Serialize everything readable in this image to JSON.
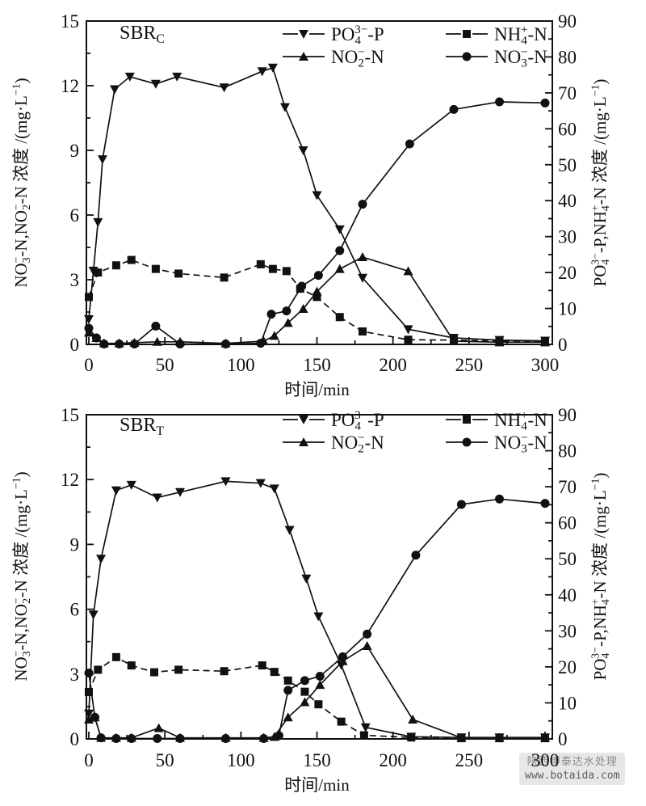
{
  "watermark": {
    "line1": "陕西博泰达水处理",
    "line2": "www.botaida.com"
  },
  "chart_data": [
    {
      "type": "line",
      "panel_label": {
        "text": "SBR",
        "sub": "C"
      },
      "xlabel": "时间/min",
      "xlim": [
        0,
        300
      ],
      "x_major_ticks": [
        0,
        50,
        100,
        150,
        200,
        250,
        300
      ],
      "x_minor_step": 25,
      "left_axis_label_segments": [
        [
          "NO",
          "n"
        ],
        [
          "3",
          "sb"
        ],
        [
          "−",
          "sp"
        ],
        [
          "-N,NO",
          "n"
        ],
        [
          "2",
          "sb"
        ],
        [
          "−",
          "sp"
        ],
        [
          "-N 浓度 /(mg·L",
          "n"
        ],
        [
          "−1",
          "sup"
        ],
        [
          ")",
          "n"
        ]
      ],
      "right_axis_label_segments": [
        [
          "PO",
          "n"
        ],
        [
          "4",
          "sb"
        ],
        [
          "3−",
          "sp"
        ],
        [
          "-P,NH",
          "n"
        ],
        [
          "4",
          "sb"
        ],
        [
          "+",
          "sp"
        ],
        [
          "-N 浓度 /(mg·L",
          "n"
        ],
        [
          "−1",
          "sup"
        ],
        [
          ")",
          "n"
        ]
      ],
      "ylim_left": [
        0,
        15
      ],
      "left_major_ticks": [
        0,
        3,
        6,
        9,
        12,
        15
      ],
      "left_minor_step": 1.5,
      "ylim_right": [
        0,
        90
      ],
      "right_major_ticks": [
        0,
        10,
        20,
        30,
        40,
        50,
        60,
        70,
        80,
        90
      ],
      "right_minor_step": 5,
      "grid": false,
      "legend_position": "top-inside-two-columns",
      "legend_columns": [
        [
          "po4",
          "no2"
        ],
        [
          "nh4",
          "no3"
        ]
      ],
      "series": [
        {
          "key": "po4",
          "name_plain": "PO4(3-)-P",
          "label_segments": [
            [
              "PO",
              "n"
            ],
            [
              "4",
              "sb"
            ],
            [
              "3−",
              "sp"
            ],
            [
              "-P",
              "n"
            ]
          ],
          "axis": "right",
          "marker": "tri-down",
          "dash": false,
          "legend_gap": true,
          "points": [
            [
              0,
              7
            ],
            [
              3,
              20.5
            ],
            [
              6,
              34
            ],
            [
              9,
              51.5
            ],
            [
              17,
              71
            ],
            [
              27,
              74.5
            ],
            [
              44,
              72.5
            ],
            [
              58,
              74.5
            ],
            [
              89,
              71.5
            ],
            [
              114,
              76
            ],
            [
              121,
              77
            ],
            [
              129,
              66
            ],
            [
              141,
              54
            ],
            [
              150,
              41.5
            ],
            [
              165,
              32
            ],
            [
              180,
              18.5
            ],
            [
              210,
              4.2
            ],
            [
              240,
              1.8
            ],
            [
              270,
              1.2
            ],
            [
              300,
              1.0
            ]
          ]
        },
        {
          "key": "nh4",
          "name_plain": "NH4(+)-N",
          "label_segments": [
            [
              "NH",
              "n"
            ],
            [
              "4",
              "sb"
            ],
            [
              "+",
              "sp"
            ],
            [
              "-N",
              "n"
            ]
          ],
          "axis": "right",
          "marker": "square",
          "dash": true,
          "legend_gap": true,
          "points": [
            [
              0,
              13.2
            ],
            [
              6,
              20
            ],
            [
              18,
              22
            ],
            [
              28,
              23.5
            ],
            [
              44,
              21
            ],
            [
              59,
              19.7
            ],
            [
              89,
              18.6
            ],
            [
              113,
              22.3
            ],
            [
              121,
              21
            ],
            [
              130,
              20.4
            ],
            [
              139,
              15.5
            ],
            [
              150,
              13.2
            ],
            [
              165,
              7.6
            ],
            [
              180,
              3.6
            ],
            [
              210,
              1.3
            ],
            [
              240,
              1.2
            ],
            [
              270,
              0.9
            ],
            [
              300,
              0.8
            ]
          ]
        },
        {
          "key": "no2",
          "name_plain": "NO2(-)-N",
          "label_segments": [
            [
              "NO",
              "n"
            ],
            [
              "2",
              "sb"
            ],
            [
              "−",
              "sp"
            ],
            [
              "-N",
              "n"
            ]
          ],
          "axis": "left",
          "marker": "tri-up",
          "dash": false,
          "legend_gap": false,
          "points": [
            [
              0,
              0.55
            ],
            [
              5,
              0.3
            ],
            [
              10,
              0.05
            ],
            [
              20,
              0.05
            ],
            [
              30,
              0.08
            ],
            [
              45,
              0.12
            ],
            [
              60,
              0.12
            ],
            [
              90,
              0.05
            ],
            [
              115,
              0.15
            ],
            [
              122,
              0.4
            ],
            [
              131,
              1.0
            ],
            [
              141,
              1.65
            ],
            [
              150,
              2.45
            ],
            [
              165,
              3.5
            ],
            [
              180,
              4.05
            ],
            [
              210,
              3.4
            ],
            [
              240,
              0.15
            ],
            [
              270,
              0.1
            ],
            [
              300,
              0.1
            ]
          ]
        },
        {
          "key": "no3",
          "name_plain": "NO3(-)-N",
          "label_segments": [
            [
              "NO",
              "n"
            ],
            [
              "3",
              "sb"
            ],
            [
              "−",
              "sp"
            ],
            [
              "-N",
              "n"
            ]
          ],
          "axis": "left",
          "marker": "circle",
          "dash": false,
          "legend_gap": false,
          "points": [
            [
              0,
              0.75
            ],
            [
              5,
              0.3
            ],
            [
              10,
              0.02
            ],
            [
              20,
              0.02
            ],
            [
              30,
              0.02
            ],
            [
              44,
              0.85
            ],
            [
              60,
              0.02
            ],
            [
              90,
              0.02
            ],
            [
              113,
              0.05
            ],
            [
              120,
              1.4
            ],
            [
              130,
              1.55
            ],
            [
              140,
              2.7
            ],
            [
              151,
              3.2
            ],
            [
              165,
              4.35
            ],
            [
              180,
              6.5
            ],
            [
              211,
              9.3
            ],
            [
              240,
              10.9
            ],
            [
              270,
              11.25
            ],
            [
              300,
              11.2
            ]
          ]
        }
      ]
    },
    {
      "type": "line",
      "panel_label": {
        "text": "SBR",
        "sub": "T"
      },
      "xlabel": "时间/min",
      "xlim": [
        0,
        300
      ],
      "x_major_ticks": [
        0,
        50,
        100,
        150,
        200,
        250,
        300
      ],
      "x_minor_step": 25,
      "left_axis_label_segments": [
        [
          "NO",
          "n"
        ],
        [
          "3",
          "sb"
        ],
        [
          "−",
          "sp"
        ],
        [
          "-N,NO",
          "n"
        ],
        [
          "2",
          "sb"
        ],
        [
          "−",
          "sp"
        ],
        [
          "-N 浓度 /(mg·L",
          "n"
        ],
        [
          "−1",
          "sup"
        ],
        [
          ")",
          "n"
        ]
      ],
      "right_axis_label_segments": [
        [
          "PO",
          "n"
        ],
        [
          "4",
          "sb"
        ],
        [
          "3−",
          "sp"
        ],
        [
          "-P,NH",
          "n"
        ],
        [
          "4",
          "sb"
        ],
        [
          "+",
          "sp"
        ],
        [
          "-N 浓度 /(mg·L",
          "n"
        ],
        [
          "−1",
          "sup"
        ],
        [
          ")",
          "n"
        ]
      ],
      "ylim_left": [
        0,
        15
      ],
      "left_major_ticks": [
        0,
        3,
        6,
        9,
        12,
        15
      ],
      "left_minor_step": 1.5,
      "ylim_right": [
        0,
        90
      ],
      "right_major_ticks": [
        0,
        10,
        20,
        30,
        40,
        50,
        60,
        70,
        80,
        90
      ],
      "right_minor_step": 5,
      "grid": false,
      "legend_position": "top-inside-two-columns",
      "legend_columns": [
        [
          "po4",
          "no2"
        ],
        [
          "nh4",
          "no3"
        ]
      ],
      "series": [
        {
          "key": "po4",
          "name_plain": "PO4(3-)-P",
          "label_segments": [
            [
              "PO",
              "n"
            ],
            [
              "4",
              "sb"
            ],
            [
              "3−",
              "sp"
            ],
            [
              "-P",
              "n"
            ]
          ],
          "axis": "right",
          "marker": "tri-down",
          "dash": false,
          "legend_gap": true,
          "points": [
            [
              0,
              7
            ],
            [
              3,
              34.5
            ],
            [
              8,
              50
            ],
            [
              18,
              69
            ],
            [
              28,
              70.5
            ],
            [
              45,
              67
            ],
            [
              60,
              68.5
            ],
            [
              90,
              71.5
            ],
            [
              113,
              71
            ],
            [
              122,
              69.5
            ],
            [
              132,
              58
            ],
            [
              143,
              44.5
            ],
            [
              151,
              34
            ],
            [
              166,
              20.5
            ],
            [
              182,
              3.2
            ],
            [
              212,
              0.6
            ],
            [
              245,
              0.4
            ],
            [
              270,
              0.4
            ],
            [
              300,
              0.4
            ]
          ]
        },
        {
          "key": "nh4",
          "name_plain": "NH4(+)-N",
          "label_segments": [
            [
              "NH",
              "n"
            ],
            [
              "4",
              "sb"
            ],
            [
              "+",
              "sp"
            ],
            [
              "-N",
              "n"
            ]
          ],
          "axis": "right",
          "marker": "square",
          "dash": true,
          "legend_gap": true,
          "points": [
            [
              0,
              13
            ],
            [
              6,
              19.2
            ],
            [
              18,
              22.7
            ],
            [
              28,
              20.4
            ],
            [
              43,
              18.5
            ],
            [
              59,
              19.2
            ],
            [
              89,
              18.8
            ],
            [
              114,
              20.4
            ],
            [
              122,
              18.6
            ],
            [
              131,
              16.2
            ],
            [
              142,
              13.1
            ],
            [
              151,
              9.6
            ],
            [
              166,
              4.8
            ],
            [
              181,
              1.0
            ],
            [
              212,
              0.4
            ],
            [
              245,
              0.2
            ],
            [
              270,
              0.2
            ],
            [
              300,
              0.2
            ]
          ]
        },
        {
          "key": "no2",
          "name_plain": "NO2(-)-N",
          "label_segments": [
            [
              "NO",
              "n"
            ],
            [
              "2",
              "sb"
            ],
            [
              "−",
              "sp"
            ],
            [
              "-N",
              "n"
            ]
          ],
          "axis": "left",
          "marker": "tri-up",
          "dash": false,
          "legend_gap": false,
          "points": [
            [
              0,
              0.9
            ],
            [
              4,
              1.0
            ],
            [
              8,
              0.05
            ],
            [
              18,
              0.05
            ],
            [
              28,
              0.05
            ],
            [
              46,
              0.5
            ],
            [
              60,
              0.05
            ],
            [
              90,
              0.05
            ],
            [
              115,
              0.05
            ],
            [
              122,
              0.1
            ],
            [
              131,
              1.0
            ],
            [
              142,
              1.7
            ],
            [
              152,
              2.5
            ],
            [
              167,
              3.6
            ],
            [
              183,
              4.3
            ],
            [
              213,
              0.9
            ],
            [
              245,
              0.05
            ],
            [
              270,
              0.05
            ],
            [
              300,
              0.05
            ]
          ]
        },
        {
          "key": "no3",
          "name_plain": "NO3(-)-N",
          "label_segments": [
            [
              "NO",
              "n"
            ],
            [
              "3",
              "sb"
            ],
            [
              "−",
              "sp"
            ],
            [
              "-N",
              "n"
            ]
          ],
          "axis": "left",
          "marker": "circle",
          "dash": false,
          "legend_gap": false,
          "points": [
            [
              0,
              3.05
            ],
            [
              4,
              1.0
            ],
            [
              8,
              0.05
            ],
            [
              18,
              0.02
            ],
            [
              28,
              0.02
            ],
            [
              45,
              0.02
            ],
            [
              60,
              0.02
            ],
            [
              90,
              0.02
            ],
            [
              115,
              0.02
            ],
            [
              125,
              0.15
            ],
            [
              131,
              2.25
            ],
            [
              142,
              2.7
            ],
            [
              152,
              2.9
            ],
            [
              167,
              3.8
            ],
            [
              183,
              4.85
            ],
            [
              215,
              8.5
            ],
            [
              245,
              10.85
            ],
            [
              270,
              11.1
            ],
            [
              300,
              10.9
            ]
          ]
        }
      ]
    }
  ]
}
